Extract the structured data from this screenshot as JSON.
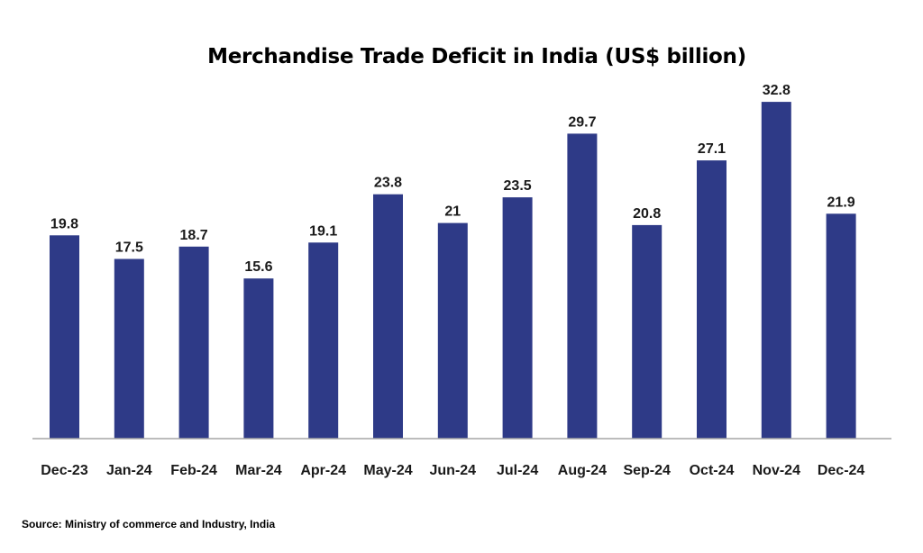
{
  "chart_data": {
    "type": "bar",
    "title": "Merchandise Trade Deficit in India (US$ billion)",
    "categories": [
      "Dec-23",
      "Jan-24",
      "Feb-24",
      "Mar-24",
      "Apr-24",
      "May-24",
      "Jun-24",
      "Jul-24",
      "Aug-24",
      "Sep-24",
      "Oct-24",
      "Nov-24",
      "Dec-24"
    ],
    "values": [
      19.8,
      17.5,
      18.7,
      15.6,
      19.1,
      23.8,
      21,
      23.5,
      29.7,
      20.8,
      27.1,
      32.8,
      21.9
    ],
    "value_labels": [
      "19.8",
      "17.5",
      "18.7",
      "15.6",
      "19.1",
      "23.8",
      "21",
      "23.5",
      "29.7",
      "20.8",
      "27.1",
      "32.8",
      "21.9"
    ],
    "xlabel": "",
    "ylabel": "",
    "ylim": [
      0,
      34
    ],
    "grid": false,
    "legend": "none",
    "bar_color": "#2e3a87",
    "axis_color": "#a6a6a6"
  },
  "source": "Source: Ministry of commerce and Industry, India"
}
